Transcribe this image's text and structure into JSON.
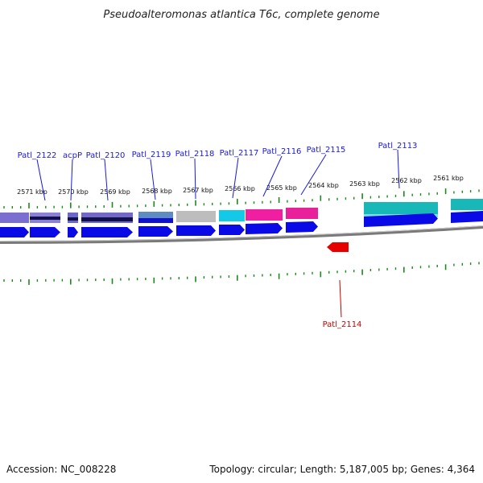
{
  "title": "Pseudoalteromonas atlantica T6c, complete genome",
  "footer": {
    "accession": "Accession: NC_008228",
    "summary": "Topology: circular; Length: 5,187,005 bp; Genes: 4,364"
  },
  "colors": {
    "gene_blue": "#0a0ae6",
    "gene_red": "#e60000",
    "tick_green": "#1a8a1a",
    "backbone": "#777777",
    "label_blue": "#1a1adb",
    "label_red": "#cc0000"
  },
  "scale_ticks": [
    "2571 kbp",
    "2570 kbp",
    "2569 kbp",
    "2568 kbp",
    "2567 kbp",
    "2566 kbp",
    "2565 kbp",
    "2564 kbp",
    "2563 kbp",
    "2562 kbp",
    "2561 kbp"
  ],
  "gene_labels": [
    "Patl_2122",
    "acpP",
    "Patl_2120",
    "Patl_2119",
    "Patl_2118",
    "Patl_2117",
    "Patl_2116",
    "Patl_2115",
    "Patl_2113"
  ],
  "reverse_gene_label": "Patl_2114"
}
